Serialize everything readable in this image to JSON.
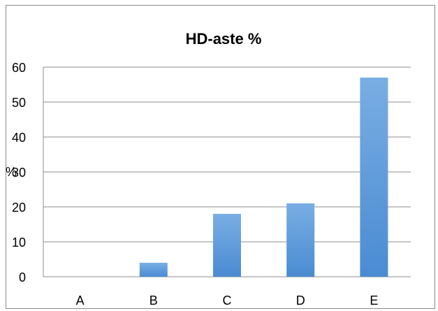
{
  "chart_data": {
    "type": "bar",
    "title": "HD-aste %",
    "xlabel": "",
    "ylabel": "%",
    "categories": [
      "A",
      "B",
      "C",
      "D",
      "E"
    ],
    "values": [
      0,
      4,
      18,
      21,
      57
    ],
    "ylim": [
      0,
      60
    ],
    "yticks": [
      0,
      10,
      20,
      30,
      40,
      50,
      60
    ],
    "grid": true,
    "legend": "none",
    "bar_color": "#5b9bd5"
  }
}
